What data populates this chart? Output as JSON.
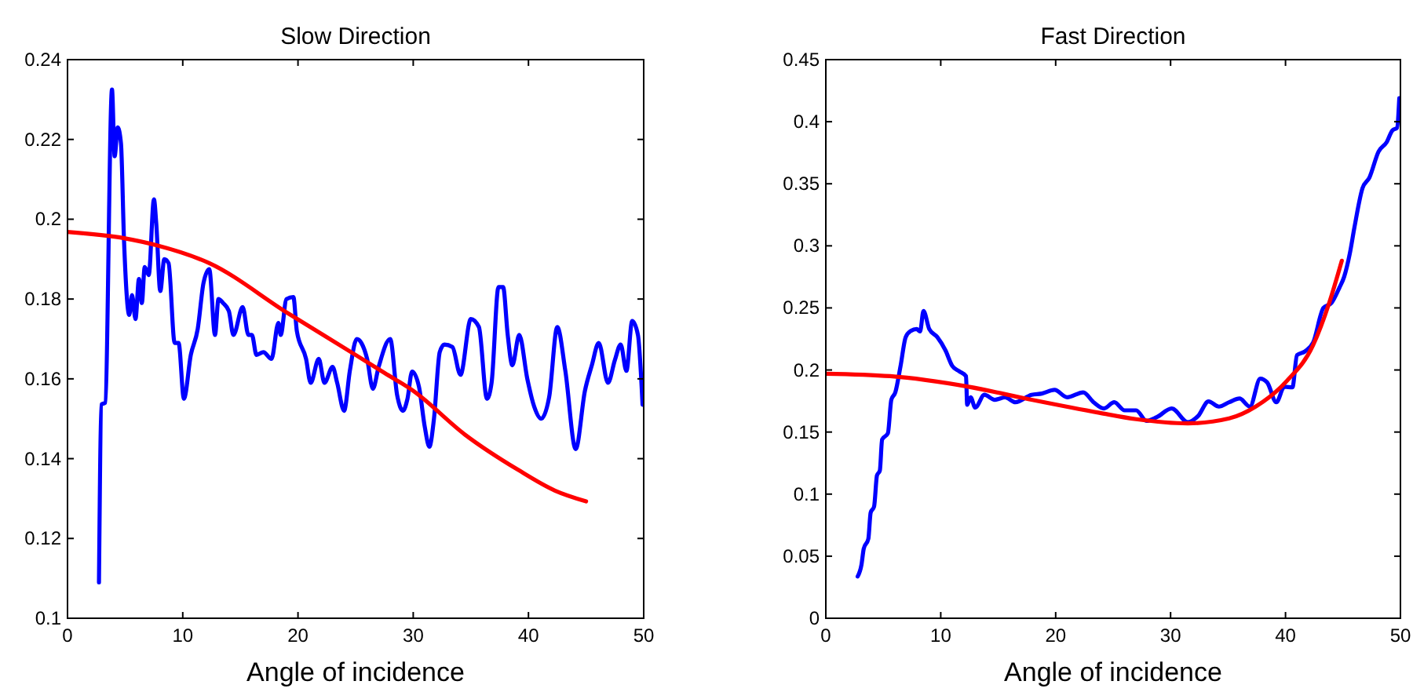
{
  "chart_data": [
    {
      "type": "line",
      "title": "Slow Direction",
      "xlabel": "Angle of incidence",
      "xlim": [
        0,
        50
      ],
      "xticks": [
        0,
        10,
        20,
        30,
        40,
        50
      ],
      "ylim": [
        0.1,
        0.24
      ],
      "yticks": [
        0.1,
        0.12,
        0.14,
        0.16,
        0.18,
        0.2,
        0.22,
        0.24
      ],
      "grid": false,
      "series": [
        {
          "color": "#0000ff",
          "x": [
            2.73,
            2.95,
            3.27,
            3.86,
            4.09,
            4.36,
            4.64,
            4.9,
            5.36,
            5.6,
            5.9,
            6.2,
            6.45,
            6.7,
            7.05,
            7.5,
            7.7,
            8.05,
            8.4,
            8.77,
            9.3,
            9.64,
            10.1,
            10.7,
            11.3,
            11.8,
            12.3,
            12.8,
            13.1,
            13.5,
            14.0,
            14.4,
            15.2,
            15.7,
            16.0,
            16.4,
            17.0,
            17.7,
            18.3,
            18.5,
            19.0,
            19.6,
            19.9,
            20.7,
            21.1,
            21.8,
            22.3,
            23.0,
            23.4,
            24.0,
            24.5,
            25.1,
            25.5,
            26.0,
            26.5,
            27.0,
            28.0,
            28.6,
            29.1,
            29.5,
            29.9,
            30.5,
            31.0,
            31.4,
            31.8,
            32.3,
            32.7,
            33.4,
            34.1,
            35.0,
            35.7,
            36.4,
            36.8,
            37.4,
            37.8,
            38.2,
            38.6,
            39.2,
            39.9,
            40.5,
            41.1,
            41.8,
            42.5,
            43.2,
            44.1,
            44.9,
            45.5,
            46.1,
            46.9,
            47.5,
            48.0,
            48.5,
            49.0,
            49.5,
            49.9
          ],
          "values": [
            0.109,
            0.1536,
            0.154,
            0.2325,
            0.2158,
            0.223,
            0.219,
            0.195,
            0.176,
            0.181,
            0.175,
            0.185,
            0.179,
            0.188,
            0.186,
            0.205,
            0.199,
            0.182,
            0.19,
            0.189,
            0.169,
            0.169,
            0.155,
            0.166,
            0.1725,
            0.184,
            0.1875,
            0.171,
            0.18,
            0.179,
            0.177,
            0.171,
            0.178,
            0.171,
            0.171,
            0.166,
            0.1667,
            0.165,
            0.174,
            0.171,
            0.18,
            0.1805,
            0.172,
            0.165,
            0.159,
            0.165,
            0.159,
            0.163,
            0.159,
            0.152,
            0.162,
            0.17,
            0.169,
            0.165,
            0.1575,
            0.163,
            0.17,
            0.156,
            0.152,
            0.155,
            0.1618,
            0.158,
            0.148,
            0.143,
            0.15,
            0.1667,
            0.1686,
            0.168,
            0.161,
            0.175,
            0.173,
            0.155,
            0.159,
            0.183,
            0.183,
            0.171,
            0.1634,
            0.171,
            0.16,
            0.153,
            0.15,
            0.1555,
            0.173,
            0.162,
            0.1424,
            0.157,
            0.1634,
            0.169,
            0.159,
            0.1647,
            0.1686,
            0.162,
            0.1745,
            0.171,
            0.1535
          ]
        },
        {
          "color": "#ff0000",
          "x": [
            0,
            5,
            7.7,
            12.3,
            19.1,
            25,
            27.5,
            30,
            34.5,
            39.1,
            42.3,
            45
          ],
          "values": [
            0.1968,
            0.1952,
            0.1935,
            0.189,
            0.1765,
            0.166,
            0.1615,
            0.157,
            0.146,
            0.1372,
            0.132,
            0.1293
          ]
        }
      ]
    },
    {
      "type": "line",
      "title": "Fast Direction",
      "xlabel": "Angle of incidence",
      "xlim": [
        0,
        50
      ],
      "xticks": [
        0,
        10,
        20,
        30,
        40,
        50
      ],
      "ylim": [
        0,
        0.45
      ],
      "yticks": [
        0,
        0.05,
        0.1,
        0.15,
        0.2,
        0.25,
        0.3,
        0.35,
        0.4,
        0.45
      ],
      "grid": false,
      "series": [
        {
          "color": "#0000ff",
          "x": [
            2.77,
            3.1,
            3.3,
            3.7,
            3.9,
            4.2,
            4.45,
            4.7,
            4.9,
            5.4,
            5.7,
            6.05,
            6.5,
            6.95,
            7.4,
            7.9,
            8.2,
            8.5,
            9.0,
            9.7,
            10.4,
            11.0,
            11.6,
            12.2,
            12.3,
            12.6,
            13.0,
            13.8,
            14.7,
            15.6,
            16.5,
            17.9,
            18.8,
            19.9,
            21.0,
            22.4,
            23.3,
            24.2,
            25.1,
            26.0,
            27.0,
            27.9,
            28.8,
            30.1,
            31.5,
            32.4,
            33.3,
            34.2,
            35.1,
            36.0,
            36.9,
            37.8,
            38.4,
            39.2,
            39.9,
            40.6,
            41.0,
            41.7,
            42.4,
            43.3,
            44.0,
            44.7,
            45.1,
            45.6,
            46.0,
            46.7,
            47.3,
            48.1,
            48.8,
            49.3,
            49.7,
            49.9
          ],
          "values": [
            0.0337,
            0.043,
            0.056,
            0.064,
            0.085,
            0.09,
            0.115,
            0.119,
            0.144,
            0.149,
            0.176,
            0.182,
            0.203,
            0.2265,
            0.2315,
            0.233,
            0.231,
            0.2475,
            0.233,
            0.2265,
            0.216,
            0.2033,
            0.199,
            0.195,
            0.172,
            0.178,
            0.1697,
            0.18,
            0.176,
            0.178,
            0.174,
            0.18,
            0.181,
            0.184,
            0.178,
            0.182,
            0.174,
            0.169,
            0.174,
            0.1675,
            0.1675,
            0.159,
            0.162,
            0.169,
            0.158,
            0.163,
            0.1747,
            0.1705,
            0.174,
            0.177,
            0.1705,
            0.193,
            0.19,
            0.174,
            0.1865,
            0.186,
            0.212,
            0.215,
            0.222,
            0.25,
            0.254,
            0.2665,
            0.275,
            0.294,
            0.315,
            0.3465,
            0.355,
            0.376,
            0.3835,
            0.393,
            0.395,
            0.419
          ]
        },
        {
          "color": "#ff0000",
          "x": [
            0,
            5.6,
            12.4,
            17.9,
            23.8,
            27,
            31.5,
            35.1,
            37.4,
            40.1,
            42.4,
            43.8,
            44.9
          ],
          "values": [
            0.197,
            0.195,
            0.1865,
            0.176,
            0.1655,
            0.1604,
            0.157,
            0.161,
            0.1705,
            0.191,
            0.22,
            0.254,
            0.288
          ]
        }
      ]
    }
  ]
}
